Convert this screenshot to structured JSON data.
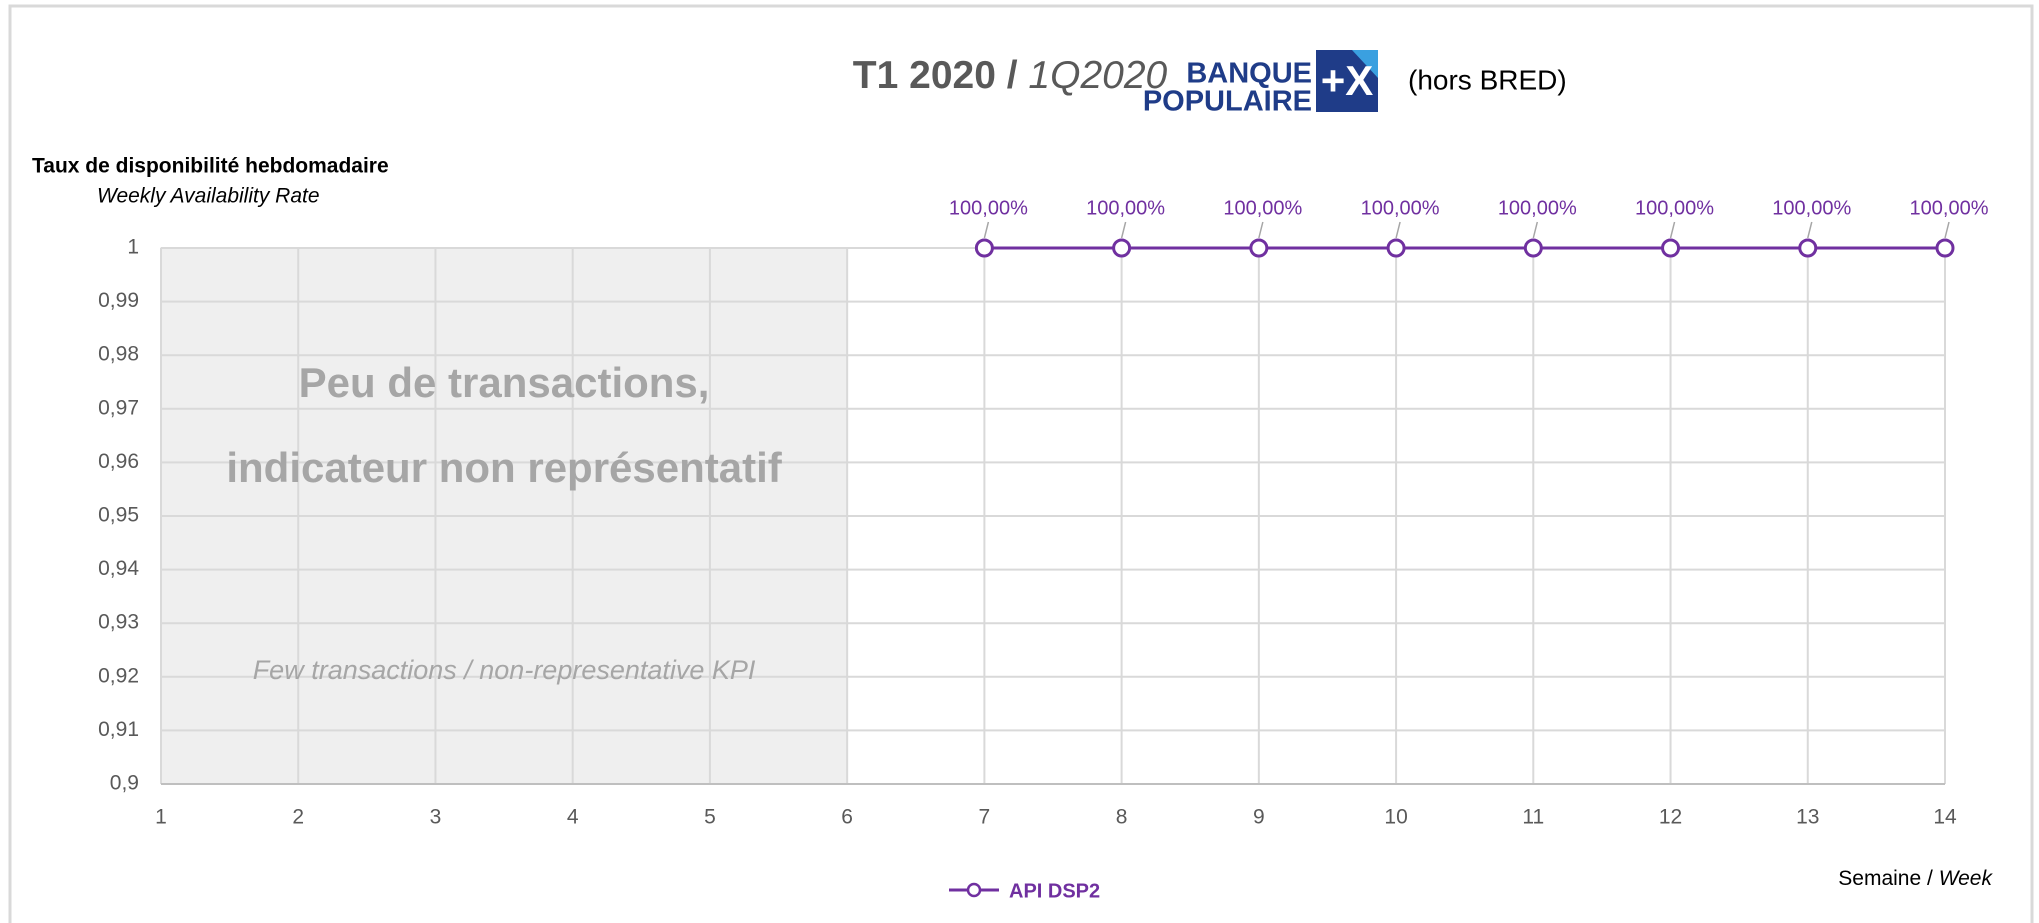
{
  "chart_data": {
    "type": "line",
    "title": {
      "main": "T1 2020",
      "separator": "/",
      "sub": "1Q2020"
    },
    "logo": {
      "line1": "BANQUE",
      "line2": "POPULAIRE",
      "mark": "+X"
    },
    "note": "(hors BRED)",
    "y_label": "Taux de disponibilité hebdomadaire",
    "y_label_en": "Weekly Availability Rate",
    "x_label": "Semaine /",
    "x_label_en": "Week",
    "annotations": [
      "Peu de transactions,",
      "indicateur non représentatif",
      "Few transactions / non-representative KPI"
    ],
    "shaded_xlim": [
      1,
      6
    ],
    "x": [
      7,
      8,
      9,
      10,
      11,
      12,
      13,
      14
    ],
    "series": [
      {
        "name": "API DSP2",
        "color": "#7030a0",
        "values": [
          1,
          1,
          1,
          1,
          1,
          1,
          1,
          1
        ],
        "value_labels": [
          "100,00%",
          "100,00%",
          "100,00%",
          "100,00%",
          "100,00%",
          "100,00%",
          "100,00%",
          "100,00%"
        ]
      }
    ],
    "xlim": [
      1,
      14
    ],
    "xticks": [
      1,
      2,
      3,
      4,
      5,
      6,
      7,
      8,
      9,
      10,
      11,
      12,
      13,
      14
    ],
    "ylim": [
      0.9,
      1
    ],
    "yticks": [
      {
        "value": 0.9,
        "label": "0,9"
      },
      {
        "value": 0.91,
        "label": "0,91"
      },
      {
        "value": 0.92,
        "label": "0,92"
      },
      {
        "value": 0.93,
        "label": "0,93"
      },
      {
        "value": 0.94,
        "label": "0,94"
      },
      {
        "value": 0.95,
        "label": "0,95"
      },
      {
        "value": 0.96,
        "label": "0,96"
      },
      {
        "value": 0.97,
        "label": "0,97"
      },
      {
        "value": 0.98,
        "label": "0,98"
      },
      {
        "value": 0.99,
        "label": "0,99"
      },
      1
    ],
    "grid": true
  }
}
